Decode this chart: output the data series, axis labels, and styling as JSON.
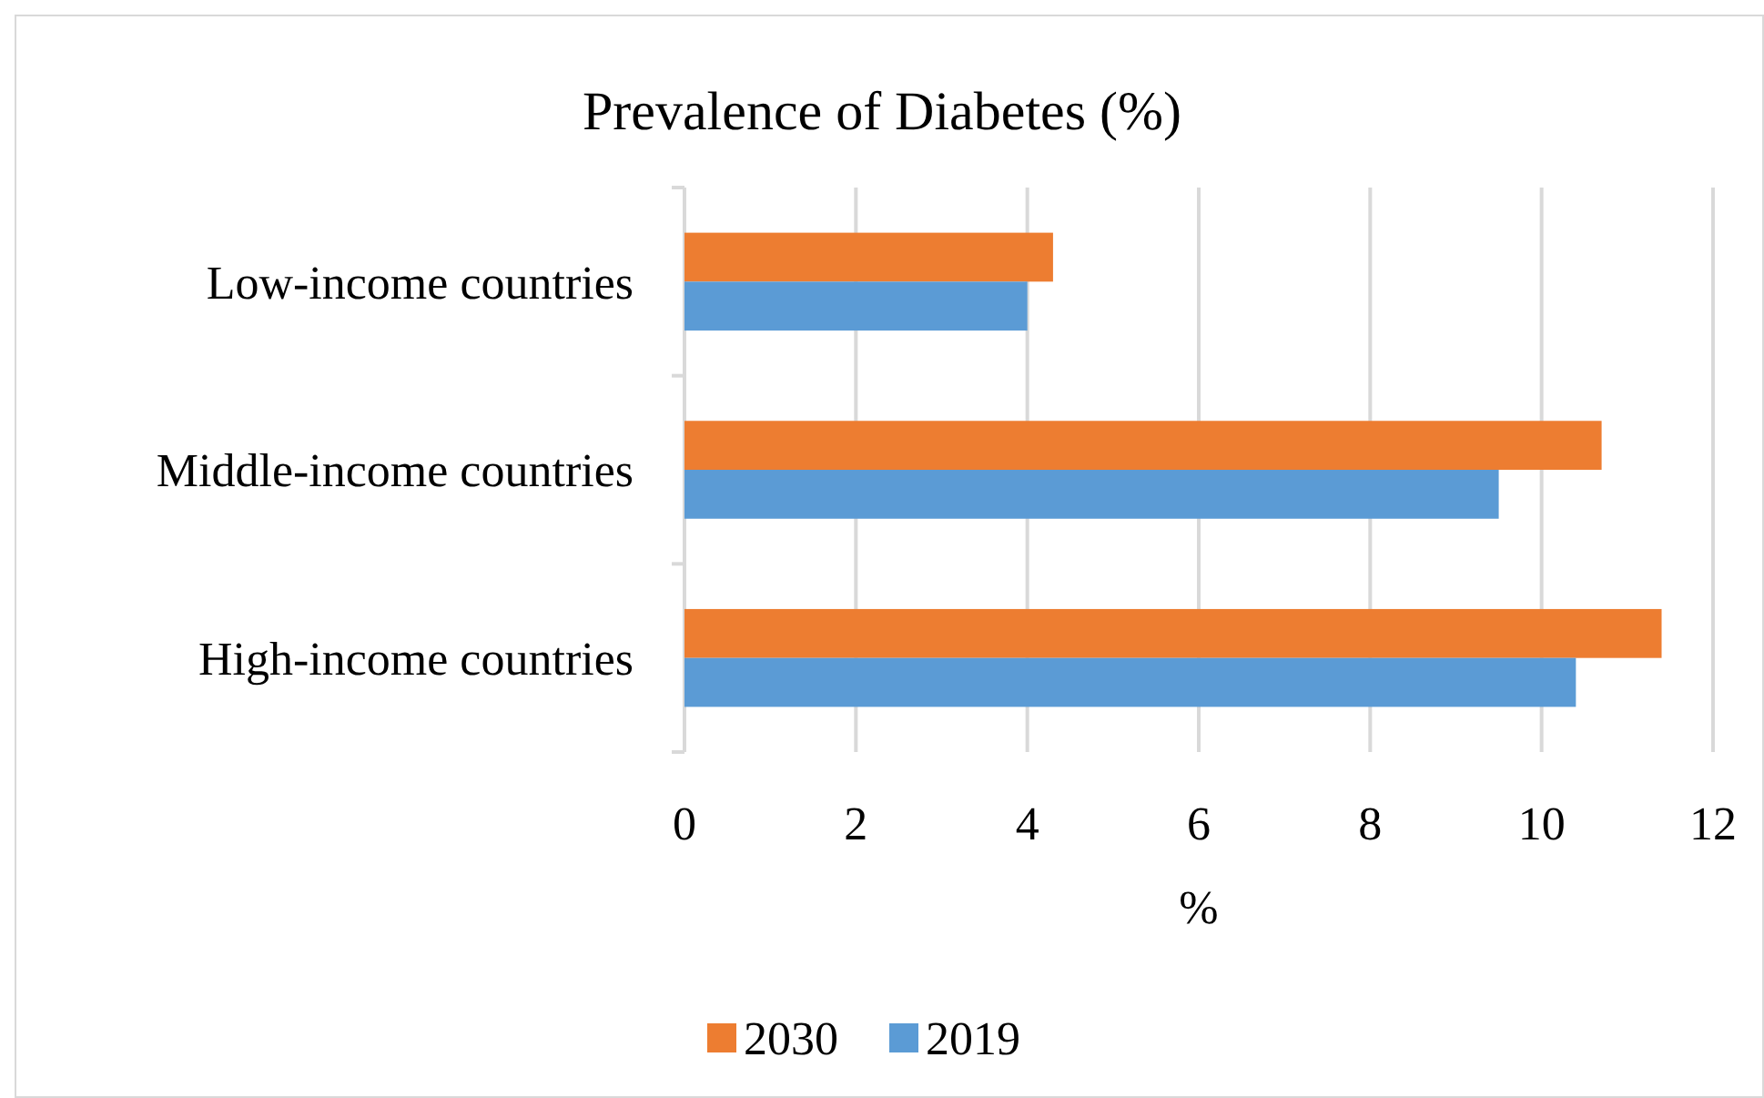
{
  "chart_data": {
    "type": "bar",
    "orientation": "horizontal",
    "title": "Prevalence of Diabetes (%)",
    "xlabel": "%",
    "categories": [
      "Low-income countries",
      "Middle-income countries",
      "High-income countries"
    ],
    "series": [
      {
        "name": "2030",
        "color": "#ed7d31",
        "values": [
          4.3,
          10.7,
          11.4
        ]
      },
      {
        "name": "2019",
        "color": "#5b9bd5",
        "values": [
          4.0,
          9.5,
          10.4
        ]
      }
    ],
    "xlim": [
      0,
      12
    ],
    "xticks": [
      0,
      2,
      4,
      6,
      8,
      10,
      12
    ],
    "grid": "x",
    "legend": "bottom"
  }
}
